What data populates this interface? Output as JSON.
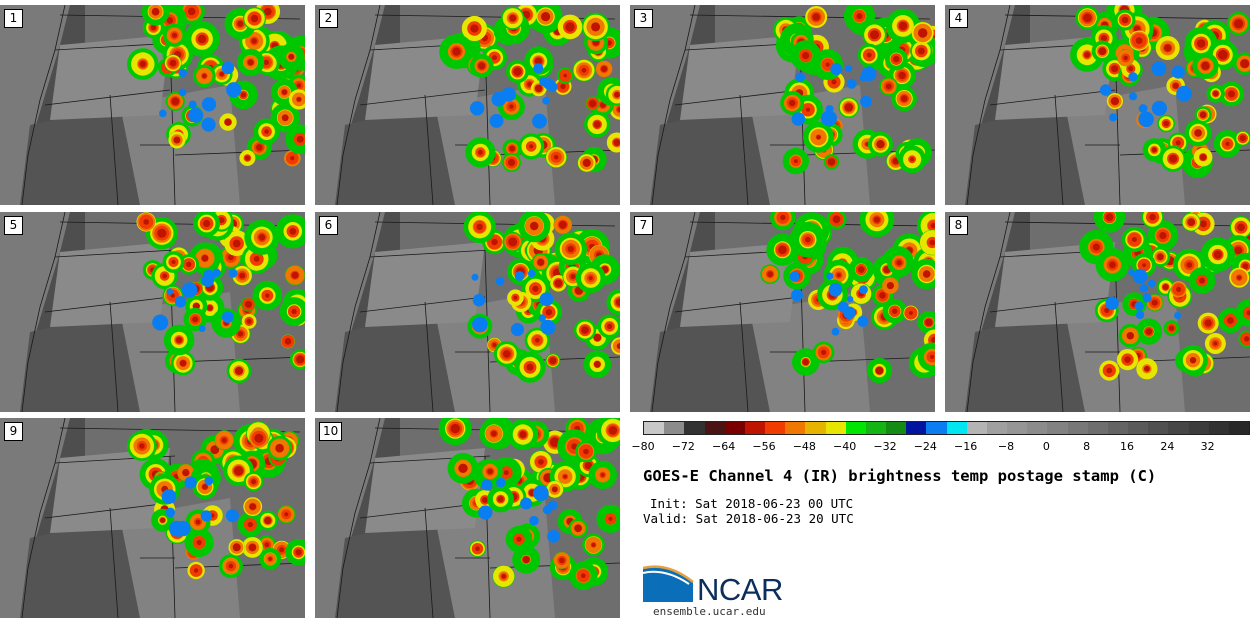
{
  "panels": [
    {
      "label": "1"
    },
    {
      "label": "2"
    },
    {
      "label": "3"
    },
    {
      "label": "4"
    },
    {
      "label": "5"
    },
    {
      "label": "6"
    },
    {
      "label": "7"
    },
    {
      "label": "8"
    },
    {
      "label": "9"
    },
    {
      "label": "10"
    }
  ],
  "colorbar": {
    "colors": [
      "#c8c8c8",
      "#8c8c8c",
      "#323232",
      "#4a1414",
      "#7a0000",
      "#be1400",
      "#f03c00",
      "#f07800",
      "#e6b400",
      "#e6e600",
      "#00e600",
      "#14b414",
      "#148c14",
      "#0014a0",
      "#0a7ef0",
      "#00e6f0",
      "#b4b4b4",
      "#a0a0a0",
      "#969696",
      "#8c8c8c",
      "#828282",
      "#787878",
      "#6e6e6e",
      "#646464",
      "#5a5a5a",
      "#505050",
      "#464646",
      "#3c3c3c",
      "#323232",
      "#282828"
    ],
    "ticks": [
      "−80",
      "−72",
      "−64",
      "−56",
      "−48",
      "−40",
      "−32",
      "−24",
      "−16",
      "−8",
      "0",
      "8",
      "16",
      "24",
      "32"
    ]
  },
  "title": "GOES-E Channel 4 (IR) brightness temp postage stamp (C)",
  "init": "Init: Sat 2018-06-23 00 UTC",
  "valid": "Valid: Sat 2018-06-23 20 UTC",
  "logo": {
    "word": "NCAR",
    "url": "ensemble.ucar.edu"
  }
}
